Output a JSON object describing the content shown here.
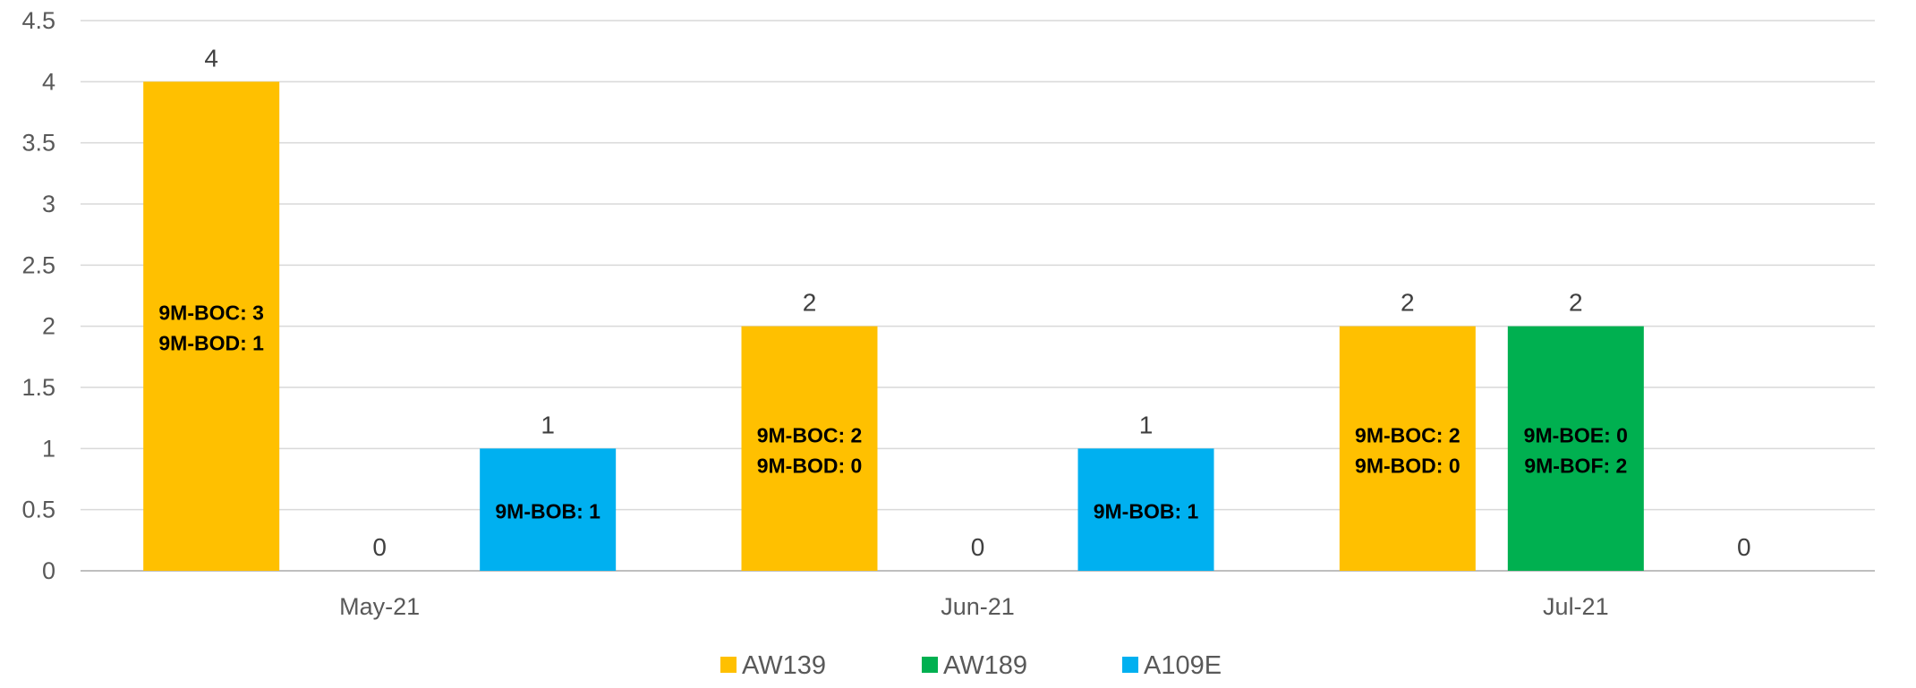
{
  "chart_data": {
    "type": "bar",
    "categories": [
      "May-21",
      "Jun-21",
      "Jul-21"
    ],
    "series": [
      {
        "name": "AW139",
        "color": "#FFC000",
        "values": [
          4,
          2,
          2
        ]
      },
      {
        "name": "AW189",
        "color": "#00B050",
        "values": [
          0,
          0,
          2
        ]
      },
      {
        "name": "A109E",
        "color": "#00B0F0",
        "values": [
          1,
          1,
          0
        ]
      }
    ],
    "annotations": [
      {
        "series": 0,
        "category": 0,
        "lines": [
          "9M-BOC: 3",
          "9M-BOD:  1"
        ]
      },
      {
        "series": 2,
        "category": 0,
        "lines": [
          "9M-BOB: 1"
        ]
      },
      {
        "series": 0,
        "category": 1,
        "lines": [
          "9M-BOC: 2",
          "9M-BOD: 0"
        ]
      },
      {
        "series": 2,
        "category": 1,
        "lines": [
          "9M-BOB: 1"
        ]
      },
      {
        "series": 0,
        "category": 2,
        "lines": [
          "9M-BOC: 2",
          "9M-BOD: 0"
        ]
      },
      {
        "series": 1,
        "category": 2,
        "lines": [
          "9M-BOE: 0",
          "9M-BOF: 2"
        ]
      }
    ],
    "yticks": [
      "0",
      "0.5",
      "1",
      "1.5",
      "2",
      "2.5",
      "3",
      "3.5",
      "4",
      "4.5"
    ],
    "ylim": [
      0,
      4.5
    ],
    "grid": true,
    "legend_position": "bottom",
    "title": "",
    "xlabel": "",
    "ylabel": ""
  }
}
